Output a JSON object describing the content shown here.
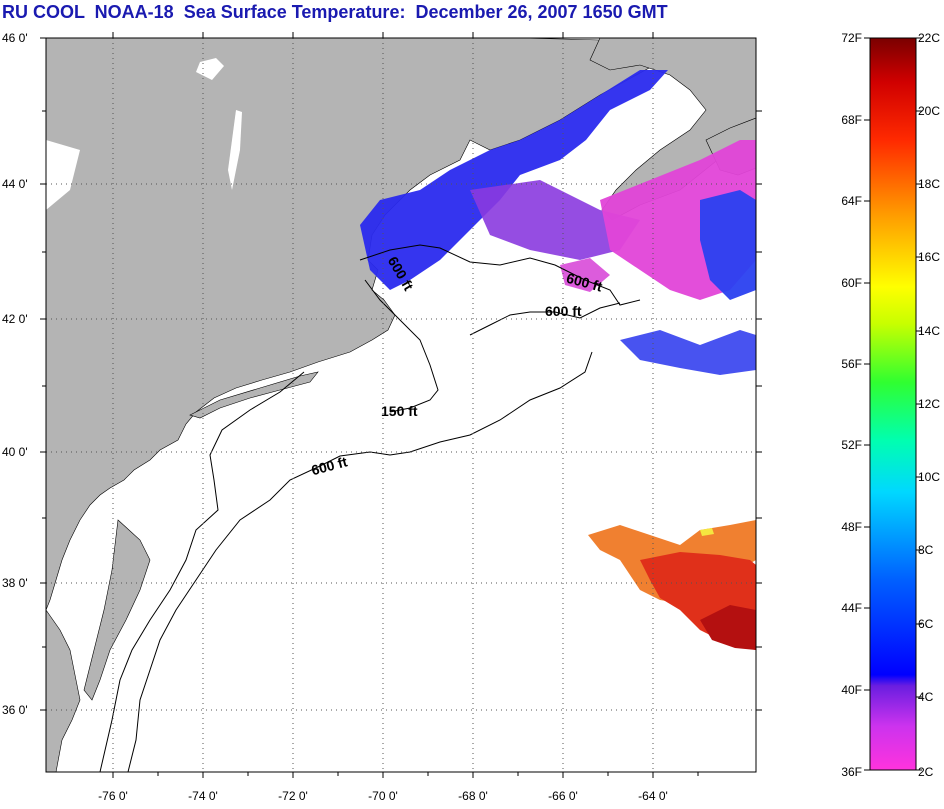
{
  "title": "RU COOL  NOAA-18  Sea Surface Temperature:  December 26, 2007 1650 GMT",
  "map": {
    "lat_labels": [
      "46 0'",
      "44 0'",
      "42 0'",
      "40 0'",
      "38 0'",
      "36 0'"
    ],
    "lon_labels": [
      "-76 0'",
      "-74 0'",
      "-72 0'",
      "-70 0'",
      "-68 0'",
      "-66 0'",
      "-64 0'"
    ],
    "contours": [
      "600 ft",
      "600 ft",
      "600 ft",
      "150 ft",
      "600 ft"
    ],
    "colors": {
      "land": "#b4b4b4",
      "ocean_nodata": "#ffffff"
    }
  },
  "colorbar": {
    "fahrenheit": [
      "72F",
      "68F",
      "64F",
      "60F",
      "56F",
      "52F",
      "48F",
      "44F",
      "40F",
      "36F"
    ],
    "celsius": [
      "22C",
      "20C",
      "18C",
      "16C",
      "14C",
      "12C",
      "10C",
      "8C",
      "6C",
      "4C",
      "2C"
    ],
    "colors": [
      "#ff33cc",
      "#7a1ee0",
      "#0000ff",
      "#00a0ff",
      "#00ffff",
      "#00ff66",
      "#ffff00",
      "#ff8000",
      "#ff0000",
      "#7a0000"
    ]
  }
}
